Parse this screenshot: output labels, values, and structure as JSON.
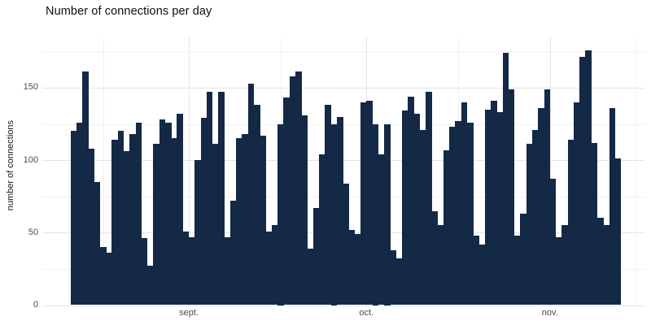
{
  "title": "Number of connections per day",
  "chart_data": {
    "type": "bar",
    "title": "Number of connections per day",
    "xlabel": "",
    "ylabel": "number of connections",
    "x_tick_labels": [
      "sept.",
      "oct.",
      "nov."
    ],
    "x_tick_day_boundaries": [
      20,
      50,
      81
    ],
    "x_minor_day_boundaries": [
      5.5,
      35.5,
      65.5,
      95.5
    ],
    "y_ticks": [
      0,
      50,
      100,
      150
    ],
    "y_minor_ticks": [
      25,
      75,
      125,
      175
    ],
    "ylim": [
      0,
      190
    ],
    "grid": true,
    "legend": false,
    "values": [
      120,
      126,
      161,
      108,
      85,
      40,
      36,
      114,
      120,
      106,
      118,
      126,
      46,
      27,
      111,
      128,
      126,
      115,
      132,
      51,
      47,
      100,
      129,
      147,
      111,
      147,
      47,
      72,
      115,
      118,
      153,
      138,
      117,
      51,
      55,
      125,
      143,
      158,
      161,
      131,
      39,
      67,
      104,
      138,
      125,
      130,
      84,
      52,
      49,
      140,
      141,
      125,
      104,
      125,
      38,
      32,
      134,
      144,
      132,
      121,
      147,
      65,
      55,
      107,
      123,
      127,
      140,
      126,
      48,
      42,
      135,
      141,
      133,
      174,
      149,
      48,
      63,
      111,
      121,
      136,
      149,
      87,
      47,
      55,
      114,
      140,
      171,
      176,
      112,
      60,
      55,
      136,
      101
    ],
    "bar_color": "#132945",
    "grid_major_color": "#e4e4e4",
    "grid_minor_color": "#f1f1f1",
    "axis_text_color": "#4d4d4d",
    "title_color": "#0d0d0d"
  }
}
